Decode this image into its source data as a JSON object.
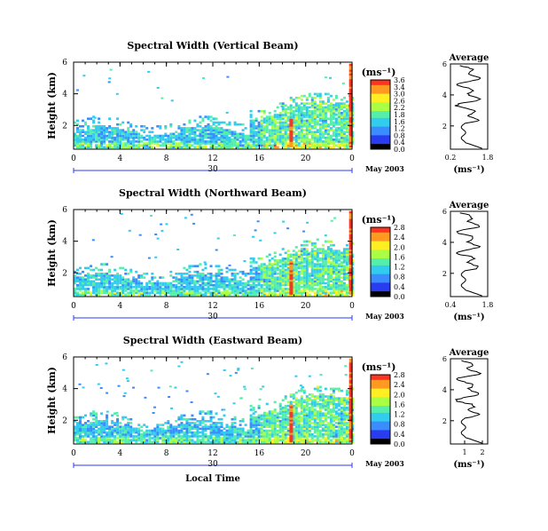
{
  "chart_data": [
    {
      "type": "heatmap",
      "title": "Spectral Width (Vertical Beam)",
      "ylabel": "Height (km)",
      "xlabel": "",
      "x_ticks": [
        "0",
        "4",
        "8",
        "12",
        "16",
        "20",
        "0"
      ],
      "y_ticks": [
        "2",
        "4",
        "6"
      ],
      "xlim": [
        0,
        24
      ],
      "ylim": [
        0.5,
        6
      ],
      "date_tick": "30",
      "date_label": "May 2003",
      "colorbar": {
        "unit": "(ms⁻¹)",
        "ticks": [
          "3.6",
          "3.4",
          "3.0",
          "2.6",
          "2.2",
          "1.8",
          "1.6",
          "1.2",
          "0.8",
          "0.4",
          "0.0"
        ],
        "range": [
          0,
          3.6
        ]
      },
      "average": {
        "title": "Average",
        "xlabel": "(ms⁻¹)",
        "x_ticks": [
          "0.2",
          "1.8"
        ],
        "xlim": [
          0.2,
          1.8
        ],
        "y_ticks": [
          "2",
          "4",
          "6"
        ],
        "ylim": [
          0.5,
          6
        ]
      }
    },
    {
      "type": "heatmap",
      "title": "Spectral Width (Northward Beam)",
      "ylabel": "Height (km)",
      "xlabel": "",
      "x_ticks": [
        "0",
        "4",
        "8",
        "12",
        "16",
        "20",
        "0"
      ],
      "y_ticks": [
        "2",
        "4",
        "6"
      ],
      "xlim": [
        0,
        24
      ],
      "ylim": [
        0.5,
        6
      ],
      "date_tick": "30",
      "date_label": "May 2003",
      "colorbar": {
        "unit": "(ms⁻¹)",
        "ticks": [
          "2.8",
          "2.4",
          "2.0",
          "1.6",
          "1.2",
          "0.8",
          "0.4",
          "0.0"
        ],
        "range": [
          0,
          2.8
        ]
      },
      "average": {
        "title": "Average",
        "xlabel": "(ms⁻¹)",
        "x_ticks": [
          "0.4",
          "1.8"
        ],
        "xlim": [
          0.4,
          1.8
        ],
        "y_ticks": [
          "2",
          "4",
          "6"
        ],
        "ylim": [
          0.5,
          6
        ]
      }
    },
    {
      "type": "heatmap",
      "title": "Spectral Width (Eastward Beam)",
      "ylabel": "Height (km)",
      "xlabel": "Local Time",
      "x_ticks": [
        "0",
        "4",
        "8",
        "12",
        "16",
        "20",
        "0"
      ],
      "y_ticks": [
        "2",
        "4",
        "6"
      ],
      "xlim": [
        0,
        24
      ],
      "ylim": [
        0.5,
        6
      ],
      "date_tick": "30",
      "date_label": "May 2003",
      "colorbar": {
        "unit": "(ms⁻¹)",
        "ticks": [
          "2.8",
          "2.4",
          "2.0",
          "1.6",
          "1.2",
          "0.8",
          "0.4",
          "0.0"
        ],
        "range": [
          0,
          2.8
        ]
      },
      "average": {
        "title": "Average",
        "xlabel": "(ms⁻¹)",
        "x_ticks": [
          "1",
          "2"
        ],
        "xlim": [
          0.2,
          2.3
        ],
        "y_ticks": [
          "2",
          "4",
          "6"
        ],
        "ylim": [
          0.5,
          6
        ]
      }
    }
  ],
  "colors": {
    "scale": [
      "#000000",
      "#2a3cf0",
      "#3a8cff",
      "#33ccee",
      "#55eeaa",
      "#aaff44",
      "#ffee22",
      "#ff9922",
      "#ff3322"
    ]
  }
}
